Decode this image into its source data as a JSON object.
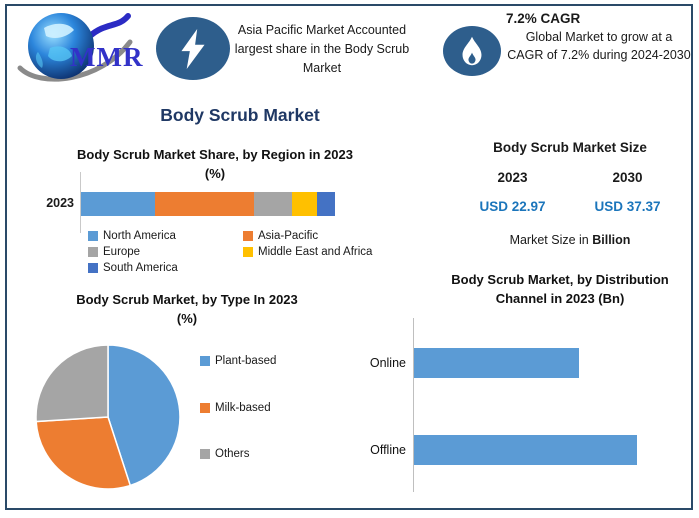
{
  "brand": {
    "logo_text": "MMR",
    "logo_icon": "globe-icon"
  },
  "header": {
    "callout1": {
      "icon": "lightning-icon",
      "text": "Asia Pacific Market Accounted largest share in the Body Scrub Market"
    },
    "callout2": {
      "icon": "flame-icon",
      "title": "7.2% CAGR",
      "text": "Global Market to grow at a CAGR of 7.2% during 2024-2030"
    }
  },
  "main_title": "Body Scrub Market",
  "market_size": {
    "title": "Body Scrub Market Size",
    "year1": "2023",
    "year2": "2030",
    "value1": "USD 22.97",
    "value2": "USD 37.37",
    "footnote_prefix": "Market Size in ",
    "footnote_bold": "Billion"
  },
  "colors": {
    "border": "#2A4A68",
    "badge": "#2E5E8C",
    "title_navy": "#1F3864",
    "usd_blue": "#1B75BB",
    "logo_blue": "#3232C8",
    "axis_gray": "#C9C9C9"
  },
  "chart_data": [
    {
      "id": "region_share",
      "type": "bar",
      "variant": "stacked-horizontal",
      "title": "Body Scrub Market Share, by Region in 2023",
      "subtitle": "(%)",
      "categories": [
        "2023"
      ],
      "xlim": [
        0,
        100
      ],
      "legend_position": "bottom",
      "grid": false,
      "series": [
        {
          "name": "North America",
          "color": "#5B9BD5",
          "values": [
            29
          ]
        },
        {
          "name": "Asia-Pacific",
          "color": "#ED7D31",
          "values": [
            39
          ]
        },
        {
          "name": "Europe",
          "color": "#A5A5A5",
          "values": [
            15
          ]
        },
        {
          "name": "Middle East and Africa",
          "color": "#FFC000",
          "values": [
            10
          ]
        },
        {
          "name": "South America",
          "color": "#4472C4",
          "values": [
            7
          ]
        }
      ]
    },
    {
      "id": "type_share",
      "type": "pie",
      "title": "Body Scrub Market, by Type In 2023",
      "subtitle": "(%)",
      "legend_position": "right",
      "start_angle_deg": 0,
      "direction": "clockwise",
      "slices": [
        {
          "label": "Plant-based",
          "value": 45,
          "color": "#5B9BD5"
        },
        {
          "label": "Milk-based",
          "value": 29,
          "color": "#ED7D31"
        },
        {
          "label": "Others",
          "value": 26,
          "color": "#A5A5A5"
        }
      ]
    },
    {
      "id": "distribution_channel",
      "type": "bar",
      "variant": "horizontal",
      "title": "Body Scrub Market, by Distribution Channel in 2023 (Bn)",
      "categories": [
        "Online",
        "Offline"
      ],
      "values": [
        9.8,
        13.2
      ],
      "xlim": [
        0,
        16
      ],
      "grid": false,
      "legend_position": "none",
      "color": "#5B9BD5"
    }
  ]
}
